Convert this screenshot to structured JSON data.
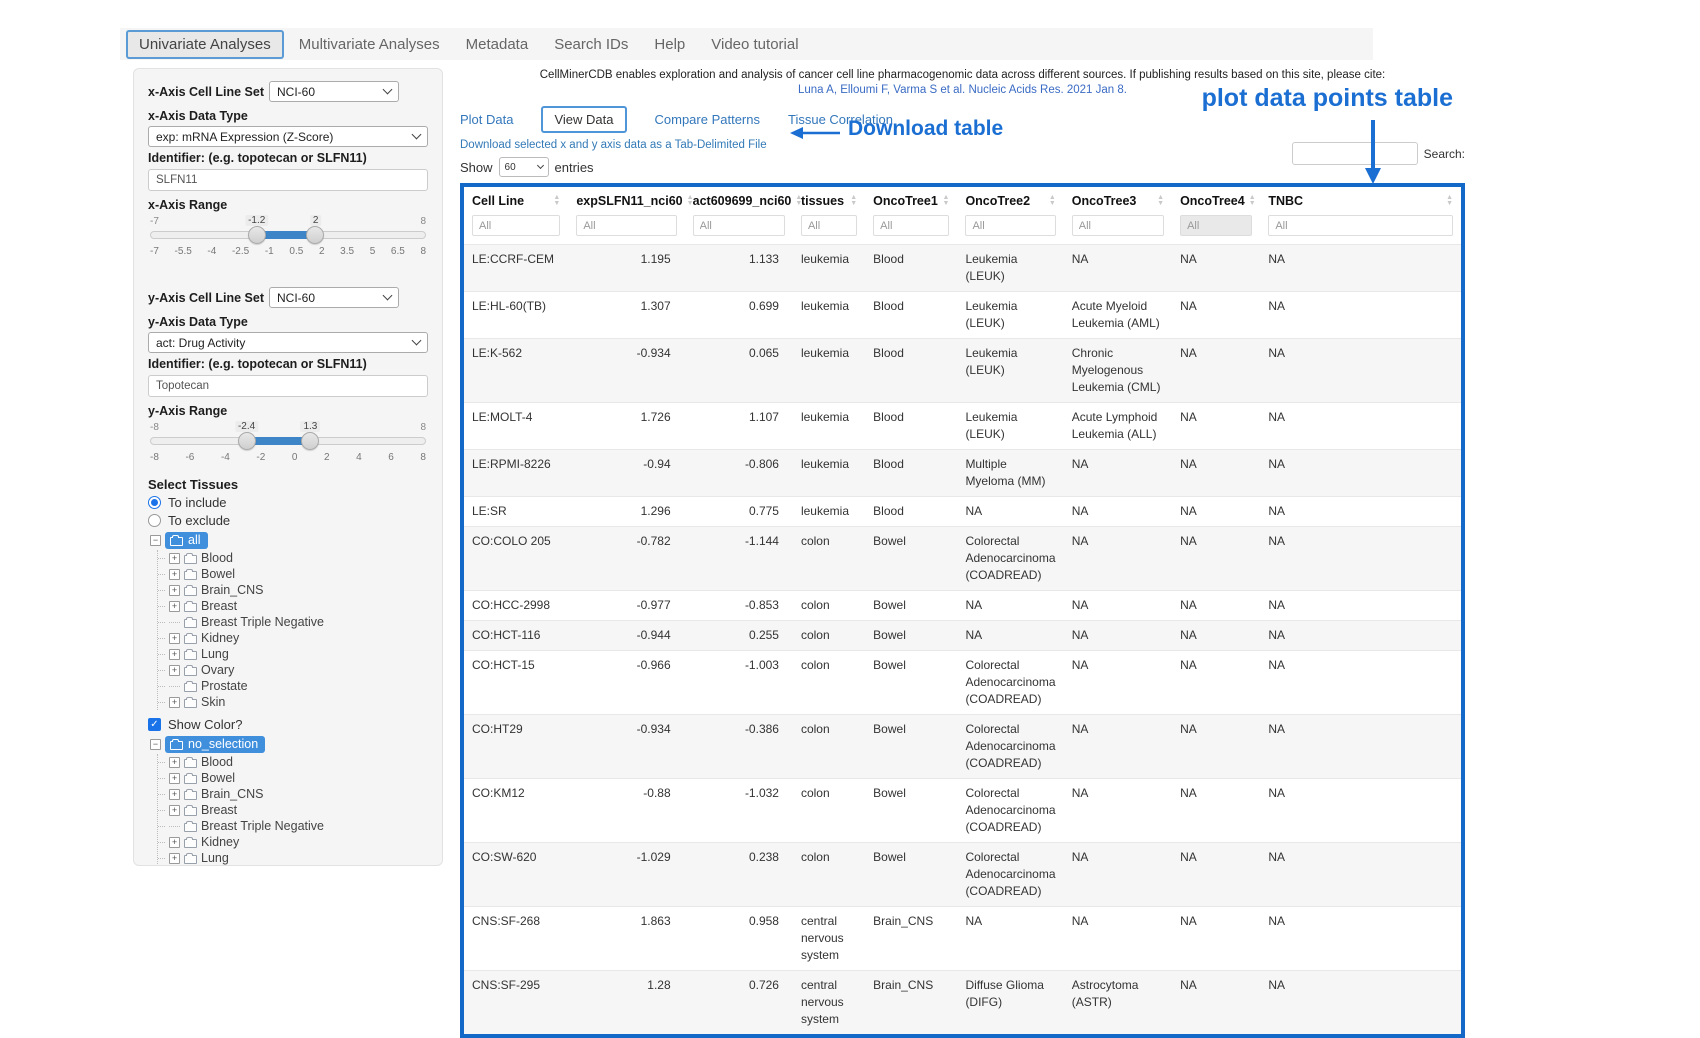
{
  "navbar": {
    "items": [
      {
        "label": "Univariate Analyses",
        "active": true
      },
      {
        "label": "Multivariate Analyses",
        "active": false
      },
      {
        "label": "Metadata",
        "active": false
      },
      {
        "label": "Search IDs",
        "active": false
      },
      {
        "label": "Help",
        "active": false
      },
      {
        "label": "Video tutorial",
        "active": false
      }
    ]
  },
  "sidebar": {
    "x_axis": {
      "cell_line_set_label": "x-Axis Cell Line Set",
      "cell_line_set_value": "NCI-60",
      "data_type_label": "x-Axis Data Type",
      "data_type_value": "exp: mRNA Expression (Z-Score)",
      "identifier_label": "Identifier: (e.g. topotecan or SLFN11)",
      "identifier_value": "SLFN11",
      "range_label": "x-Axis Range",
      "range": {
        "min": -7,
        "max": 8,
        "from": -1.2,
        "to": 2,
        "min_label": "-7",
        "max_label": "8",
        "from_label": "-1.2",
        "to_label": "2",
        "ticks": [
          "-7",
          "-5.5",
          "-4",
          "-2.5",
          "-1",
          "0.5",
          "2",
          "3.5",
          "5",
          "6.5",
          "8"
        ]
      }
    },
    "y_axis": {
      "cell_line_set_label": "y-Axis Cell Line Set",
      "cell_line_set_value": "NCI-60",
      "data_type_label": "y-Axis Data Type",
      "data_type_value": "act: Drug Activity",
      "identifier_label": "Identifier: (e.g. topotecan or SLFN11)",
      "identifier_value": "Topotecan",
      "range_label": "y-Axis Range",
      "range": {
        "min": -8,
        "max": 8,
        "from": -2.4,
        "to": 1.3,
        "min_label": "-8",
        "max_label": "8",
        "from_label": "-2.4",
        "to_label": "1.3",
        "ticks": [
          "-8",
          "-6",
          "-4",
          "-2",
          "0",
          "2",
          "4",
          "6",
          "8"
        ]
      }
    },
    "select_tissues_label": "Select Tissues",
    "include_label": "To include",
    "exclude_label": "To exclude",
    "show_color_label": "Show Color?",
    "tree_include_root": "all",
    "tree_color_root": "no_selection",
    "tissues": [
      {
        "label": "Blood",
        "expandable": true
      },
      {
        "label": "Bowel",
        "expandable": true
      },
      {
        "label": "Brain_CNS",
        "expandable": true
      },
      {
        "label": "Breast",
        "expandable": true
      },
      {
        "label": "Breast Triple Negative",
        "expandable": false
      },
      {
        "label": "Kidney",
        "expandable": true
      },
      {
        "label": "Lung",
        "expandable": true
      },
      {
        "label": "Ovary",
        "expandable": true
      },
      {
        "label": "Prostate",
        "expandable": false
      },
      {
        "label": "Skin",
        "expandable": true
      }
    ]
  },
  "main": {
    "citation_text": "CellMinerCDB enables exploration and analysis of cancer cell line pharmacogenomic data across different sources. If publishing results based on this site, please cite:",
    "citation_link": "Luna A, Elloumi F, Varma S et al. Nucleic Acids Res. 2021 Jan 8.",
    "tabs": [
      {
        "label": "Plot Data",
        "active": false
      },
      {
        "label": "View Data",
        "active": true
      },
      {
        "label": "Compare Patterns",
        "active": false
      },
      {
        "label": "Tissue Correlation",
        "active": false
      }
    ],
    "download_link": "Download selected x and y axis data as a Tab-Delimited File",
    "show_label": "Show",
    "entries_value": "60",
    "entries_label": "entries",
    "search_label": "Search:"
  },
  "annotations": {
    "download": "Download table",
    "plot": "plot data points table",
    "color": "#1b6ed2"
  },
  "table": {
    "filter_placeholder": "All",
    "columns": [
      "Cell Line",
      "expSLFN11_nci60",
      "act609699_nci60",
      "tissues",
      "OncoTree1",
      "OncoTree2",
      "OncoTree3",
      "OncoTree4",
      "TNBC"
    ],
    "rows": [
      [
        "LE:CCRF-CEM",
        "1.195",
        "1.133",
        "leukemia",
        "Blood",
        "Leukemia (LEUK)",
        "NA",
        "NA",
        "NA"
      ],
      [
        "LE:HL-60(TB)",
        "1.307",
        "0.699",
        "leukemia",
        "Blood",
        "Leukemia (LEUK)",
        "Acute Myeloid Leukemia (AML)",
        "NA",
        "NA"
      ],
      [
        "LE:K-562",
        "-0.934",
        "0.065",
        "leukemia",
        "Blood",
        "Leukemia (LEUK)",
        "Chronic Myelogenous Leukemia (CML)",
        "NA",
        "NA"
      ],
      [
        "LE:MOLT-4",
        "1.726",
        "1.107",
        "leukemia",
        "Blood",
        "Leukemia (LEUK)",
        "Acute Lymphoid Leukemia (ALL)",
        "NA",
        "NA"
      ],
      [
        "LE:RPMI-8226",
        "-0.94",
        "-0.806",
        "leukemia",
        "Blood",
        "Multiple Myeloma (MM)",
        "NA",
        "NA",
        "NA"
      ],
      [
        "LE:SR",
        "1.296",
        "0.775",
        "leukemia",
        "Blood",
        "NA",
        "NA",
        "NA",
        "NA"
      ],
      [
        "CO:COLO 205",
        "-0.782",
        "-1.144",
        "colon",
        "Bowel",
        "Colorectal Adenocarcinoma (COADREAD)",
        "NA",
        "NA",
        "NA"
      ],
      [
        "CO:HCC-2998",
        "-0.977",
        "-0.853",
        "colon",
        "Bowel",
        "NA",
        "NA",
        "NA",
        "NA"
      ],
      [
        "CO:HCT-116",
        "-0.944",
        "0.255",
        "colon",
        "Bowel",
        "NA",
        "NA",
        "NA",
        "NA"
      ],
      [
        "CO:HCT-15",
        "-0.966",
        "-1.003",
        "colon",
        "Bowel",
        "Colorectal Adenocarcinoma (COADREAD)",
        "NA",
        "NA",
        "NA"
      ],
      [
        "CO:HT29",
        "-0.934",
        "-0.386",
        "colon",
        "Bowel",
        "Colorectal Adenocarcinoma (COADREAD)",
        "NA",
        "NA",
        "NA"
      ],
      [
        "CO:KM12",
        "-0.88",
        "-1.032",
        "colon",
        "Bowel",
        "Colorectal Adenocarcinoma (COADREAD)",
        "NA",
        "NA",
        "NA"
      ],
      [
        "CO:SW-620",
        "-1.029",
        "0.238",
        "colon",
        "Bowel",
        "Colorectal Adenocarcinoma (COADREAD)",
        "NA",
        "NA",
        "NA"
      ],
      [
        "CNS:SF-268",
        "1.863",
        "0.958",
        "central nervous system",
        "Brain_CNS",
        "NA",
        "NA",
        "NA",
        "NA"
      ],
      [
        "CNS:SF-295",
        "1.28",
        "0.726",
        "central nervous system",
        "Brain_CNS",
        "Diffuse Glioma (DIFG)",
        "Astrocytoma (ASTR)",
        "NA",
        "NA"
      ]
    ]
  }
}
